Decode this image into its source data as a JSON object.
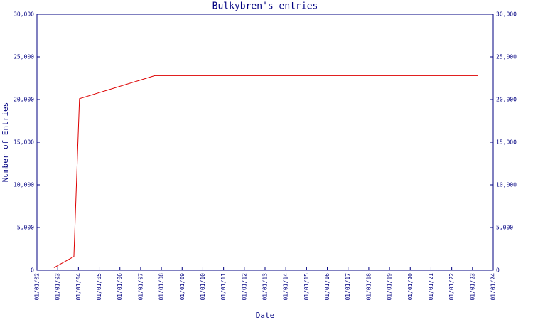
{
  "chart_data": {
    "type": "line",
    "title": "Bulkybren's entries",
    "x_label": "Date",
    "y_label": "Number of Entries",
    "x": [
      2002.82,
      2003.78,
      2004.05,
      2007.68,
      2023.25
    ],
    "values": [
      300,
      1600,
      20100,
      22800,
      22800
    ],
    "color": "#dd0000",
    "axis_color": "#000080",
    "xlim": [
      2002,
      2024
    ],
    "xticks": [
      {
        "value": 2002,
        "label": "01/01/02"
      },
      {
        "value": 2003,
        "label": "01/01/03"
      },
      {
        "value": 2004,
        "label": "01/01/04"
      },
      {
        "value": 2005,
        "label": "01/01/05"
      },
      {
        "value": 2006,
        "label": "01/01/06"
      },
      {
        "value": 2007,
        "label": "01/01/07"
      },
      {
        "value": 2008,
        "label": "01/01/08"
      },
      {
        "value": 2009,
        "label": "01/01/09"
      },
      {
        "value": 2010,
        "label": "01/01/10"
      },
      {
        "value": 2011,
        "label": "01/01/11"
      },
      {
        "value": 2012,
        "label": "01/01/12"
      },
      {
        "value": 2013,
        "label": "01/01/13"
      },
      {
        "value": 2014,
        "label": "01/01/14"
      },
      {
        "value": 2015,
        "label": "01/01/15"
      },
      {
        "value": 2016,
        "label": "01/01/16"
      },
      {
        "value": 2017,
        "label": "01/01/17"
      },
      {
        "value": 2018,
        "label": "01/01/18"
      },
      {
        "value": 2019,
        "label": "01/01/19"
      },
      {
        "value": 2020,
        "label": "01/01/20"
      },
      {
        "value": 2021,
        "label": "01/01/21"
      },
      {
        "value": 2022,
        "label": "01/01/22"
      },
      {
        "value": 2023,
        "label": "01/01/23"
      },
      {
        "value": 2024,
        "label": "01/01/24"
      }
    ],
    "ylim": [
      0,
      30000
    ],
    "yticks": [
      0,
      {
        "value": 5000,
        "label": "5,000"
      },
      {
        "value": 10000,
        "label": "10,000"
      },
      {
        "value": 15000,
        "label": "15,000"
      },
      {
        "value": 20000,
        "label": "20,000"
      },
      {
        "value": 25000,
        "label": "25,000"
      },
      {
        "value": 30000,
        "label": "30,000"
      }
    ]
  }
}
